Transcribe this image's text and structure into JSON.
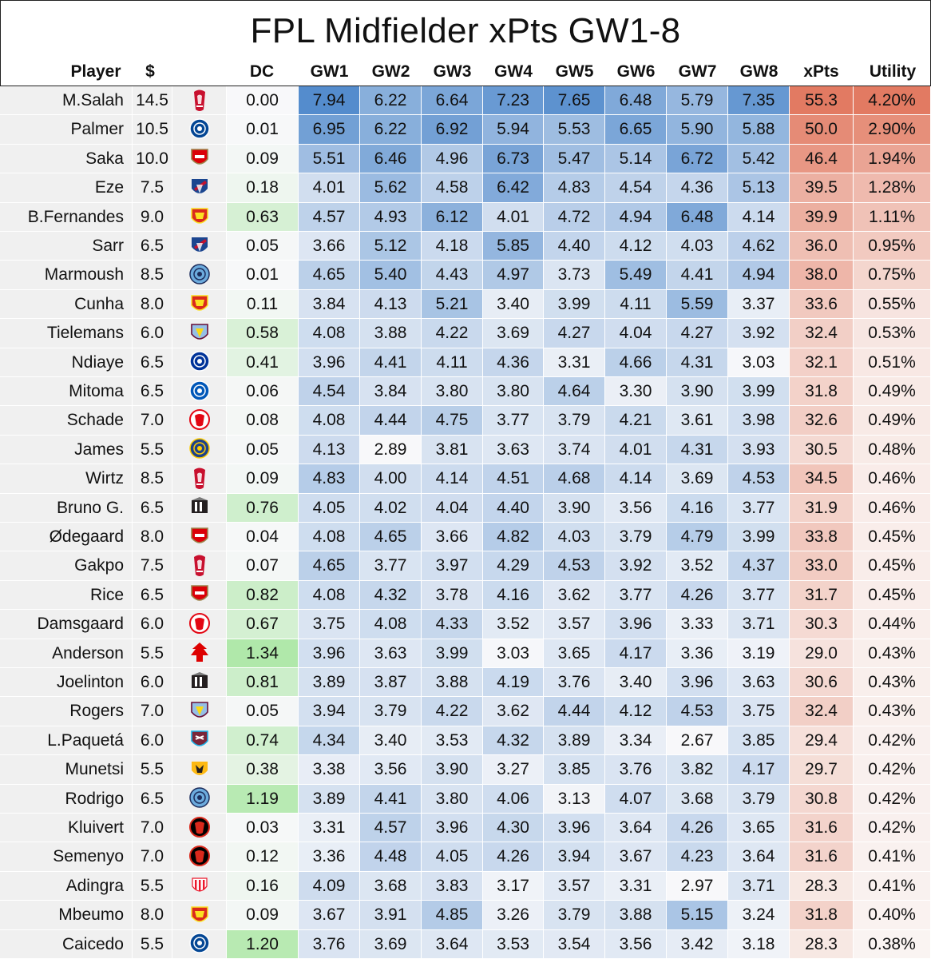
{
  "title": "FPL Midfielder xPts GW1-8",
  "chart_data": {
    "type": "table",
    "title": "FPL Midfielder xPts GW1-8",
    "columns": [
      "Player",
      "$",
      "DC",
      "GW1",
      "GW2",
      "GW3",
      "GW4",
      "GW5",
      "GW6",
      "GW7",
      "GW8",
      "xPts",
      "Utility"
    ],
    "rows": [
      {
        "player": "M.Salah",
        "price": "14.5",
        "crest": "liverpool",
        "dc": "0.00",
        "gw": [
          "7.94",
          "6.22",
          "6.64",
          "7.23",
          "7.65",
          "6.48",
          "5.79",
          "7.35"
        ],
        "xpts": "55.3",
        "utility": "4.20%"
      },
      {
        "player": "Palmer",
        "price": "10.5",
        "crest": "chelsea",
        "dc": "0.01",
        "gw": [
          "6.95",
          "6.22",
          "6.92",
          "5.94",
          "5.53",
          "6.65",
          "5.90",
          "5.88"
        ],
        "xpts": "50.0",
        "utility": "2.90%"
      },
      {
        "player": "Saka",
        "price": "10.0",
        "crest": "arsenal",
        "dc": "0.09",
        "gw": [
          "5.51",
          "6.46",
          "4.96",
          "6.73",
          "5.47",
          "5.14",
          "6.72",
          "5.42"
        ],
        "xpts": "46.4",
        "utility": "1.94%"
      },
      {
        "player": "Eze",
        "price": "7.5",
        "crest": "crystal-palace",
        "dc": "0.18",
        "gw": [
          "4.01",
          "5.62",
          "4.58",
          "6.42",
          "4.83",
          "4.54",
          "4.36",
          "5.13"
        ],
        "xpts": "39.5",
        "utility": "1.28%"
      },
      {
        "player": "B.Fernandes",
        "price": "9.0",
        "crest": "man-utd",
        "dc": "0.63",
        "gw": [
          "4.57",
          "4.93",
          "6.12",
          "4.01",
          "4.72",
          "4.94",
          "6.48",
          "4.14"
        ],
        "xpts": "39.9",
        "utility": "1.11%"
      },
      {
        "player": "Sarr",
        "price": "6.5",
        "crest": "crystal-palace",
        "dc": "0.05",
        "gw": [
          "3.66",
          "5.12",
          "4.18",
          "5.85",
          "4.40",
          "4.12",
          "4.03",
          "4.62"
        ],
        "xpts": "36.0",
        "utility": "0.95%"
      },
      {
        "player": "Marmoush",
        "price": "8.5",
        "crest": "man-city",
        "dc": "0.01",
        "gw": [
          "4.65",
          "5.40",
          "4.43",
          "4.97",
          "3.73",
          "5.49",
          "4.41",
          "4.94"
        ],
        "xpts": "38.0",
        "utility": "0.75%"
      },
      {
        "player": "Cunha",
        "price": "8.0",
        "crest": "man-utd",
        "dc": "0.11",
        "gw": [
          "3.84",
          "4.13",
          "5.21",
          "3.40",
          "3.99",
          "4.11",
          "5.59",
          "3.37"
        ],
        "xpts": "33.6",
        "utility": "0.55%"
      },
      {
        "player": "Tielemans",
        "price": "6.0",
        "crest": "aston-villa",
        "dc": "0.58",
        "gw": [
          "4.08",
          "3.88",
          "4.22",
          "3.69",
          "4.27",
          "4.04",
          "4.27",
          "3.92"
        ],
        "xpts": "32.4",
        "utility": "0.53%"
      },
      {
        "player": "Ndiaye",
        "price": "6.5",
        "crest": "everton",
        "dc": "0.41",
        "gw": [
          "3.96",
          "4.41",
          "4.11",
          "4.36",
          "3.31",
          "4.66",
          "4.31",
          "3.03"
        ],
        "xpts": "32.1",
        "utility": "0.51%"
      },
      {
        "player": "Mitoma",
        "price": "6.5",
        "crest": "brighton",
        "dc": "0.06",
        "gw": [
          "4.54",
          "3.84",
          "3.80",
          "3.80",
          "4.64",
          "3.30",
          "3.90",
          "3.99"
        ],
        "xpts": "31.8",
        "utility": "0.49%"
      },
      {
        "player": "Schade",
        "price": "7.0",
        "crest": "brentford",
        "dc": "0.08",
        "gw": [
          "4.08",
          "4.44",
          "4.75",
          "3.77",
          "3.79",
          "4.21",
          "3.61",
          "3.98"
        ],
        "xpts": "32.6",
        "utility": "0.49%"
      },
      {
        "player": "James",
        "price": "5.5",
        "crest": "leeds",
        "dc": "0.05",
        "gw": [
          "4.13",
          "2.89",
          "3.81",
          "3.63",
          "3.74",
          "4.01",
          "4.31",
          "3.93"
        ],
        "xpts": "30.5",
        "utility": "0.48%"
      },
      {
        "player": "Wirtz",
        "price": "8.5",
        "crest": "liverpool",
        "dc": "0.09",
        "gw": [
          "4.83",
          "4.00",
          "4.14",
          "4.51",
          "4.68",
          "4.14",
          "3.69",
          "4.53"
        ],
        "xpts": "34.5",
        "utility": "0.46%"
      },
      {
        "player": "Bruno G.",
        "price": "6.5",
        "crest": "newcastle",
        "dc": "0.76",
        "gw": [
          "4.05",
          "4.02",
          "4.04",
          "4.40",
          "3.90",
          "3.56",
          "4.16",
          "3.77"
        ],
        "xpts": "31.9",
        "utility": "0.46%"
      },
      {
        "player": "Ødegaard",
        "price": "8.0",
        "crest": "arsenal",
        "dc": "0.04",
        "gw": [
          "4.08",
          "4.65",
          "3.66",
          "4.82",
          "4.03",
          "3.79",
          "4.79",
          "3.99"
        ],
        "xpts": "33.8",
        "utility": "0.45%"
      },
      {
        "player": "Gakpo",
        "price": "7.5",
        "crest": "liverpool",
        "dc": "0.07",
        "gw": [
          "4.65",
          "3.77",
          "3.97",
          "4.29",
          "4.53",
          "3.92",
          "3.52",
          "4.37"
        ],
        "xpts": "33.0",
        "utility": "0.45%"
      },
      {
        "player": "Rice",
        "price": "6.5",
        "crest": "arsenal",
        "dc": "0.82",
        "gw": [
          "4.08",
          "4.32",
          "3.78",
          "4.16",
          "3.62",
          "3.77",
          "4.26",
          "3.77"
        ],
        "xpts": "31.7",
        "utility": "0.45%"
      },
      {
        "player": "Damsgaard",
        "price": "6.0",
        "crest": "brentford",
        "dc": "0.67",
        "gw": [
          "3.75",
          "4.08",
          "4.33",
          "3.52",
          "3.57",
          "3.96",
          "3.33",
          "3.71"
        ],
        "xpts": "30.3",
        "utility": "0.44%"
      },
      {
        "player": "Anderson",
        "price": "5.5",
        "crest": "nottm-forest",
        "dc": "1.34",
        "gw": [
          "3.96",
          "3.63",
          "3.99",
          "3.03",
          "3.65",
          "4.17",
          "3.36",
          "3.19"
        ],
        "xpts": "29.0",
        "utility": "0.43%"
      },
      {
        "player": "Joelinton",
        "price": "6.0",
        "crest": "newcastle",
        "dc": "0.81",
        "gw": [
          "3.89",
          "3.87",
          "3.88",
          "4.19",
          "3.76",
          "3.40",
          "3.96",
          "3.63"
        ],
        "xpts": "30.6",
        "utility": "0.43%"
      },
      {
        "player": "Rogers",
        "price": "7.0",
        "crest": "aston-villa",
        "dc": "0.05",
        "gw": [
          "3.94",
          "3.79",
          "4.22",
          "3.62",
          "4.44",
          "4.12",
          "4.53",
          "3.75"
        ],
        "xpts": "32.4",
        "utility": "0.43%"
      },
      {
        "player": "L.Paquetá",
        "price": "6.0",
        "crest": "west-ham",
        "dc": "0.74",
        "gw": [
          "4.34",
          "3.40",
          "3.53",
          "4.32",
          "3.89",
          "3.34",
          "2.67",
          "3.85"
        ],
        "xpts": "29.4",
        "utility": "0.42%"
      },
      {
        "player": "Munetsi",
        "price": "5.5",
        "crest": "wolves",
        "dc": "0.38",
        "gw": [
          "3.38",
          "3.56",
          "3.90",
          "3.27",
          "3.85",
          "3.76",
          "3.82",
          "4.17"
        ],
        "xpts": "29.7",
        "utility": "0.42%"
      },
      {
        "player": "Rodrigo",
        "price": "6.5",
        "crest": "man-city",
        "dc": "1.19",
        "gw": [
          "3.89",
          "4.41",
          "3.80",
          "4.06",
          "3.13",
          "4.07",
          "3.68",
          "3.79"
        ],
        "xpts": "30.8",
        "utility": "0.42%"
      },
      {
        "player": "Kluivert",
        "price": "7.0",
        "crest": "bournemouth",
        "dc": "0.03",
        "gw": [
          "3.31",
          "4.57",
          "3.96",
          "4.30",
          "3.96",
          "3.64",
          "4.26",
          "3.65"
        ],
        "xpts": "31.6",
        "utility": "0.42%"
      },
      {
        "player": "Semenyo",
        "price": "7.0",
        "crest": "bournemouth",
        "dc": "0.12",
        "gw": [
          "3.36",
          "4.48",
          "4.05",
          "4.26",
          "3.94",
          "3.67",
          "4.23",
          "3.64"
        ],
        "xpts": "31.6",
        "utility": "0.41%"
      },
      {
        "player": "Adingra",
        "price": "5.5",
        "crest": "sunderland",
        "dc": "0.16",
        "gw": [
          "4.09",
          "3.68",
          "3.83",
          "3.17",
          "3.57",
          "3.31",
          "2.97",
          "3.71"
        ],
        "xpts": "28.3",
        "utility": "0.41%"
      },
      {
        "player": "Mbeumo",
        "price": "8.0",
        "crest": "man-utd",
        "dc": "0.09",
        "gw": [
          "3.67",
          "3.91",
          "4.85",
          "3.26",
          "3.79",
          "3.88",
          "5.15",
          "3.24"
        ],
        "xpts": "31.8",
        "utility": "0.40%"
      },
      {
        "player": "Caicedo",
        "price": "5.5",
        "crest": "chelsea",
        "dc": "1.20",
        "gw": [
          "3.76",
          "3.69",
          "3.64",
          "3.53",
          "3.54",
          "3.56",
          "3.42",
          "3.18"
        ],
        "xpts": "28.3",
        "utility": "0.38%"
      }
    ]
  },
  "crest_colors": {
    "liverpool": {
      "primary": "#c8102e",
      "secondary": "#ffffff"
    },
    "chelsea": {
      "primary": "#034694",
      "secondary": "#ffffff"
    },
    "arsenal": {
      "primary": "#db0007",
      "secondary": "#9c824a"
    },
    "crystal-palace": {
      "primary": "#1b458f",
      "secondary": "#c4122e"
    },
    "man-utd": {
      "primary": "#da291c",
      "secondary": "#fbe122"
    },
    "man-city": {
      "primary": "#6cabdd",
      "secondary": "#1c2c5b"
    },
    "aston-villa": {
      "primary": "#95bfe5",
      "secondary": "#670e36"
    },
    "everton": {
      "primary": "#003399",
      "secondary": "#ffffff"
    },
    "brighton": {
      "primary": "#0057b8",
      "secondary": "#ffffff"
    },
    "brentford": {
      "primary": "#e30613",
      "secondary": "#ffffff"
    },
    "leeds": {
      "primary": "#1d428a",
      "secondary": "#ffcd00"
    },
    "newcastle": {
      "primary": "#241f20",
      "secondary": "#41b6e6"
    },
    "nottm-forest": {
      "primary": "#dd0000",
      "secondary": "#ffffff"
    },
    "west-ham": {
      "primary": "#7a263a",
      "secondary": "#1bb1e7"
    },
    "wolves": {
      "primary": "#fdb913",
      "secondary": "#231f20"
    },
    "bournemouth": {
      "primary": "#da291c",
      "secondary": "#000000"
    },
    "sunderland": {
      "primary": "#eb172b",
      "secondary": "#ffffff"
    }
  }
}
